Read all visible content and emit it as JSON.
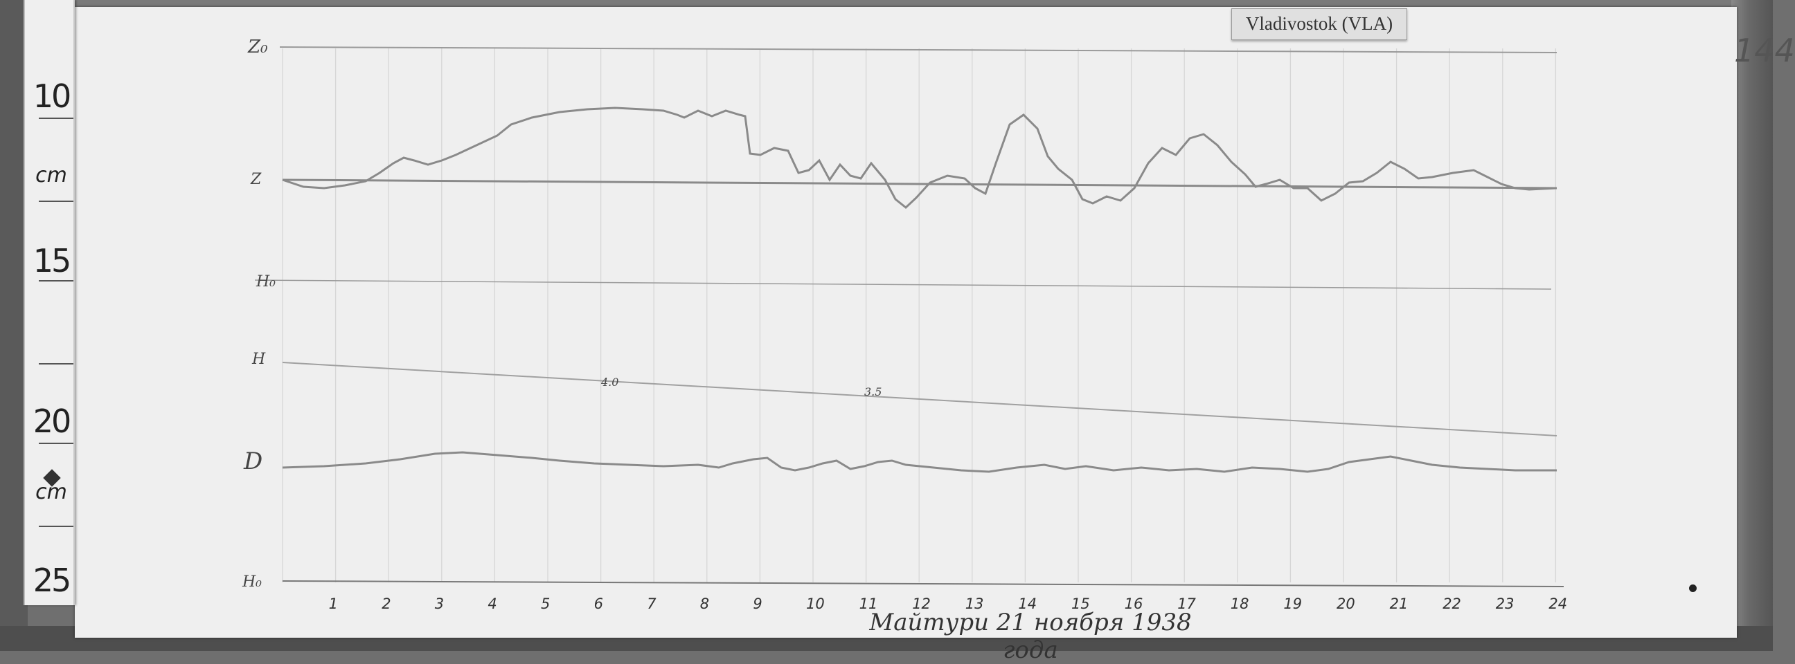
{
  "ruler": {
    "marks": [
      {
        "key": "m10",
        "label": "10"
      },
      {
        "key": "m15",
        "label": "15"
      },
      {
        "key": "m20",
        "label": "20"
      },
      {
        "key": "m25",
        "label": "25"
      }
    ],
    "unit_upper": "cm",
    "unit_lower": "cm"
  },
  "sheet": {
    "station_label": "Vladivostok (VLA)",
    "page_number": "144",
    "baseline_labels": {
      "z0": "Z₀",
      "z": "Z",
      "h0": "H₀",
      "h": "H",
      "d": "D"
    },
    "scale_values": {
      "h_left": "4.0",
      "h_mid": "3.5"
    },
    "hours": [
      "1",
      "2",
      "3",
      "4",
      "5",
      "6",
      "7",
      "8",
      "9",
      "10",
      "11",
      "12",
      "13",
      "14",
      "15",
      "16",
      "17",
      "18",
      "19",
      "20",
      "21",
      "22",
      "23",
      "24"
    ],
    "footer_caption": "Майтури 21 ноября 1938 года"
  },
  "colors": {
    "paper": "#efefef",
    "trace": "#8a8a8a",
    "grid": "#d6d6d6",
    "ink": "#333333"
  }
}
